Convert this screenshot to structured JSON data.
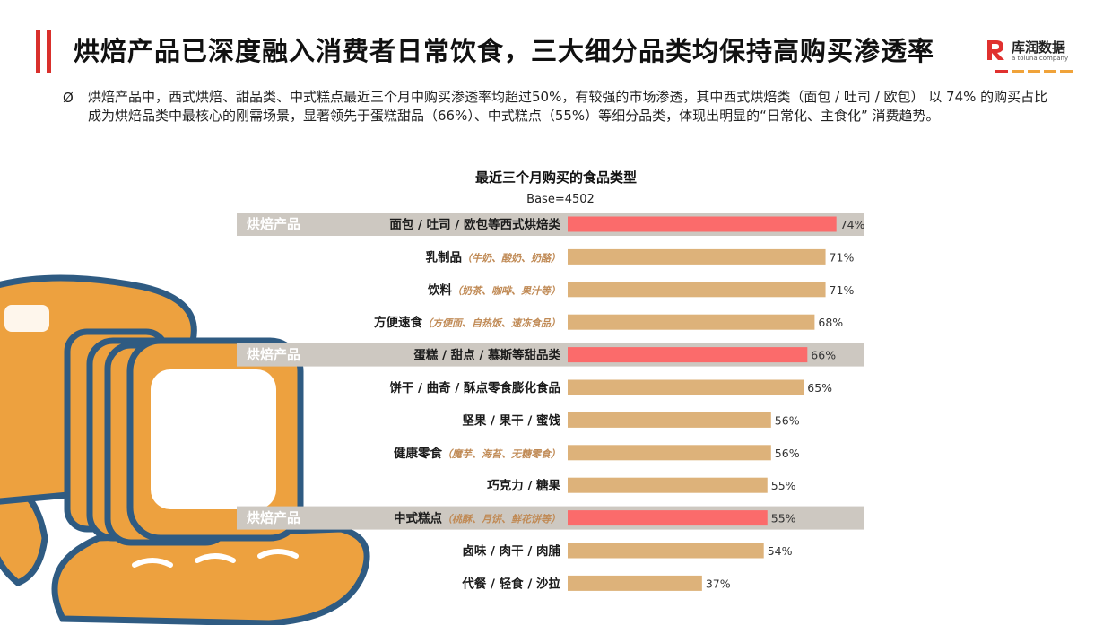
{
  "header": {
    "title": "烘焙产品已深度融入消费者日常饮食，三大细分品类均保持高购买渗透率",
    "logo_name": "库润数据",
    "logo_sub": "a toluna company"
  },
  "summary": {
    "bullet": "Ø",
    "text": "烘焙产品中，西式烘焙、甜品类、中式糕点最近三个月中购买渗透率均超过50%，有较强的市场渗透，其中西式烘焙类（面包 / 吐司 / 欧包） 以 74% 的购买占比成为烘焙品类中最核心的刚需场景，显著领先于蛋糕甜品（66%）、中式糕点（55%）等细分品类，体现出明显的“日常化、主食化” 消费趋势。"
  },
  "colors": {
    "accent": "#d9302c",
    "bar_default": "#ddb27a",
    "bar_highlight": "#fb6b6b",
    "highlight_band": "#cdc8c1",
    "illustration_orange": "#eda13f",
    "illustration_blue": "#2f5b82"
  },
  "chart_data": {
    "type": "bar",
    "orientation": "horizontal",
    "title": "最近三个月购买的食品类型",
    "base_note": "Base=4502",
    "highlight_tag": "烘焙产品",
    "value_suffix": "%",
    "xlim": [
      0,
      100
    ],
    "categories": [
      {
        "label": "面包 / 吐司 / 欧包等西式烘焙类",
        "note": "",
        "value": 74,
        "highlight": true
      },
      {
        "label": "乳制品",
        "note": "（牛奶、酸奶、奶酪）",
        "value": 71,
        "highlight": false
      },
      {
        "label": "饮料",
        "note": "（奶茶、咖啡、果汁等）",
        "value": 71,
        "highlight": false
      },
      {
        "label": "方便速食",
        "note": "（方便面、自热饭、速冻食品）",
        "value": 68,
        "highlight": false
      },
      {
        "label": "蛋糕 / 甜点 / 慕斯等甜品类",
        "note": "",
        "value": 66,
        "highlight": true
      },
      {
        "label": "饼干 / 曲奇 / 酥点零食膨化食品",
        "note": "",
        "value": 65,
        "highlight": false
      },
      {
        "label": "坚果 / 果干 / 蜜饯",
        "note": "",
        "value": 56,
        "highlight": false
      },
      {
        "label": "健康零食",
        "note": "（魔芋、海苔、无糖零食）",
        "value": 56,
        "highlight": false
      },
      {
        "label": "巧克力 / 糖果",
        "note": "",
        "value": 55,
        "highlight": false
      },
      {
        "label": "中式糕点",
        "note": "（桃酥、月饼、鲜花饼等）",
        "value": 55,
        "highlight": true
      },
      {
        "label": "卤味 / 肉干 / 肉脯",
        "note": "",
        "value": 54,
        "highlight": false
      },
      {
        "label": "代餐 / 轻食 / 沙拉",
        "note": "",
        "value": 37,
        "highlight": false
      }
    ]
  }
}
